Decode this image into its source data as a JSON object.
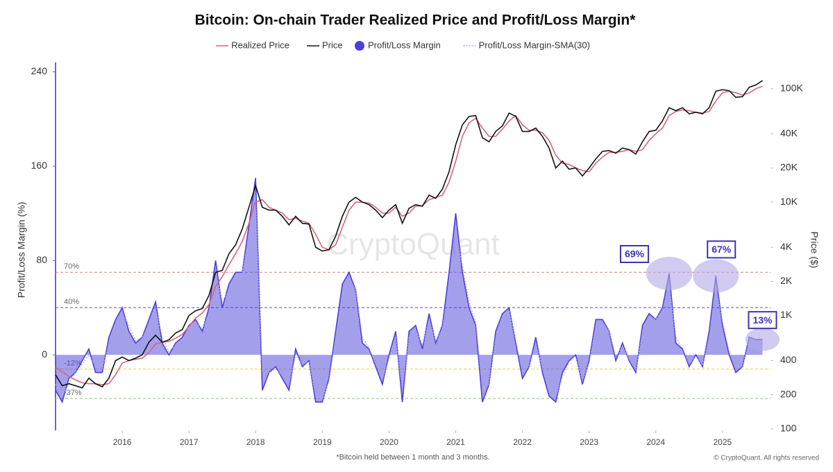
{
  "chart_data": {
    "type": "line",
    "title": "Bitcoin: On-chain Trader Realized Price and Profit/Loss Margin*",
    "footnote": "*Bitcoin held between 1 month and 3 months.",
    "copyright": "© CryptoQuant. All rights reserved",
    "watermark": "CryptoQuant",
    "y_label": "Profit/Loss Margin (%)",
    "y2_label": "Price ($)",
    "x": [
      2015.0,
      2015.1,
      2015.2,
      2015.3,
      2015.4,
      2015.5,
      2015.6,
      2015.7,
      2015.8,
      2015.9,
      2016.0,
      2016.1,
      2016.2,
      2016.3,
      2016.4,
      2016.5,
      2016.6,
      2016.7,
      2016.8,
      2016.9,
      2017.0,
      2017.1,
      2017.2,
      2017.3,
      2017.4,
      2017.5,
      2017.6,
      2017.7,
      2017.8,
      2017.9,
      2018.0,
      2018.1,
      2018.2,
      2018.3,
      2018.4,
      2018.5,
      2018.6,
      2018.7,
      2018.8,
      2018.9,
      2019.0,
      2019.1,
      2019.2,
      2019.3,
      2019.4,
      2019.5,
      2019.6,
      2019.7,
      2019.8,
      2019.9,
      2020.0,
      2020.1,
      2020.2,
      2020.3,
      2020.4,
      2020.5,
      2020.6,
      2020.7,
      2020.8,
      2020.9,
      2021.0,
      2021.1,
      2021.2,
      2021.3,
      2021.4,
      2021.5,
      2021.6,
      2021.7,
      2021.8,
      2021.9,
      2022.0,
      2022.1,
      2022.2,
      2022.3,
      2022.4,
      2022.5,
      2022.6,
      2022.7,
      2022.8,
      2022.9,
      2023.0,
      2023.1,
      2023.2,
      2023.3,
      2023.4,
      2023.5,
      2023.6,
      2023.7,
      2023.8,
      2023.9,
      2024.0,
      2024.1,
      2024.2,
      2024.3,
      2024.4,
      2024.5,
      2024.6,
      2024.7,
      2024.8,
      2024.9,
      2025.0,
      2025.1,
      2025.2,
      2025.3,
      2025.4,
      2025.5,
      2025.6
    ],
    "xlim": [
      2015.0,
      2025.72
    ],
    "xticks": [
      2016,
      2017,
      2018,
      2019,
      2020,
      2021,
      2022,
      2023,
      2024,
      2025
    ],
    "ylim": [
      -64,
      242
    ],
    "yticks": [
      0,
      80,
      160,
      240
    ],
    "y2lim": [
      97,
      148000
    ],
    "y2log": true,
    "y2ticks": [
      100,
      200,
      400,
      {
        "value": 1000,
        "label": "1K"
      },
      {
        "value": 2000,
        "label": "2K"
      },
      {
        "value": 4000,
        "label": "4K"
      },
      {
        "value": 10000,
        "label": "10K"
      },
      {
        "value": 20000,
        "label": "20K"
      },
      {
        "value": 40000,
        "label": "40K"
      },
      {
        "value": 100000,
        "label": "100K"
      }
    ],
    "series": [
      {
        "name": "Realized Price",
        "color": "#d9637a",
        "axis": "y2",
        "style": "line",
        "values": [
          350,
          320,
          290,
          270,
          255,
          250,
          250,
          245,
          250,
          300,
          380,
          400,
          410,
          420,
          470,
          560,
          580,
          590,
          630,
          680,
          800,
          950,
          1050,
          1250,
          1800,
          2200,
          2800,
          3500,
          4500,
          6500,
          10000,
          10500,
          9000,
          8500,
          8000,
          7000,
          7200,
          6800,
          6500,
          5200,
          4000,
          3800,
          4200,
          6000,
          8500,
          10000,
          10000,
          9800,
          9000,
          8000,
          8000,
          9000,
          7500,
          8000,
          9200,
          9300,
          10500,
          11000,
          11500,
          15000,
          23000,
          38000,
          50000,
          55000,
          45000,
          38000,
          38000,
          44000,
          52000,
          58000,
          48000,
          43000,
          43000,
          41000,
          35000,
          26000,
          22000,
          21500,
          20000,
          19000,
          18500,
          22000,
          25000,
          27500,
          27500,
          28000,
          29000,
          28000,
          29000,
          35000,
          40000,
          45000,
          58000,
          63000,
          65000,
          64000,
          62000,
          61000,
          63000,
          78000,
          92000,
          95000,
          92000,
          88000,
          92000,
          100000,
          105000
        ]
      },
      {
        "name": "Price",
        "color": "#111111",
        "axis": "y2",
        "style": "line",
        "values": [
          300,
          240,
          250,
          240,
          230,
          280,
          250,
          235,
          280,
          400,
          430,
          400,
          420,
          450,
          580,
          670,
          580,
          610,
          700,
          750,
          1000,
          1100,
          1150,
          1500,
          2400,
          2500,
          3500,
          4200,
          5800,
          9000,
          14000,
          9000,
          8500,
          8500,
          7500,
          6300,
          7500,
          6500,
          6400,
          4000,
          3700,
          3800,
          5000,
          7500,
          10000,
          11000,
          10000,
          9500,
          8500,
          7300,
          8500,
          9500,
          6500,
          8800,
          9500,
          9200,
          11500,
          10800,
          13000,
          18500,
          32000,
          48000,
          57000,
          58000,
          37000,
          34000,
          42000,
          47000,
          61000,
          57000,
          42000,
          42000,
          45000,
          38000,
          30000,
          20000,
          23000,
          19500,
          20000,
          17000,
          20000,
          24000,
          28000,
          28500,
          27000,
          30000,
          29000,
          26500,
          34000,
          42000,
          43000,
          52000,
          68000,
          64000,
          68000,
          60000,
          62000,
          60000,
          68000,
          95000,
          98000,
          96000,
          84000,
          85000,
          103000,
          108000,
          118000
        ]
      },
      {
        "name": "Profit/Loss Margin",
        "color": "#4a3fd8",
        "style": "area",
        "values": [
          -30,
          -40,
          -20,
          -15,
          -5,
          5,
          -15,
          -15,
          15,
          30,
          40,
          20,
          10,
          15,
          30,
          45,
          10,
          0,
          10,
          15,
          25,
          30,
          20,
          40,
          80,
          40,
          60,
          70,
          70,
          110,
          150,
          -30,
          -15,
          -10,
          -20,
          -30,
          5,
          -10,
          -5,
          -40,
          -40,
          -20,
          20,
          60,
          70,
          55,
          10,
          5,
          -10,
          -25,
          0,
          20,
          -40,
          20,
          25,
          5,
          35,
          10,
          25,
          70,
          120,
          70,
          40,
          25,
          -40,
          -25,
          20,
          35,
          40,
          10,
          -20,
          -10,
          15,
          -15,
          -35,
          -40,
          -15,
          -5,
          0,
          -25,
          -5,
          30,
          30,
          20,
          -5,
          10,
          -5,
          -15,
          25,
          35,
          30,
          40,
          69,
          10,
          5,
          -10,
          0,
          -10,
          20,
          67,
          25,
          0,
          -15,
          -10,
          15,
          13,
          13
        ]
      },
      {
        "name": "Profit/Loss Margin-SMA(30)",
        "color": "#a9a3e6",
        "style": "dotted",
        "values": [
          -25,
          -35,
          -25,
          -15,
          -8,
          0,
          -10,
          -12,
          10,
          25,
          35,
          25,
          12,
          15,
          25,
          40,
          15,
          3,
          8,
          13,
          22,
          28,
          22,
          35,
          70,
          45,
          55,
          65,
          70,
          100,
          135,
          -15,
          -15,
          -12,
          -18,
          -25,
          0,
          -8,
          -6,
          -35,
          -38,
          -22,
          15,
          50,
          65,
          55,
          15,
          6,
          -8,
          -22,
          -3,
          15,
          -30,
          15,
          22,
          8,
          30,
          12,
          22,
          60,
          105,
          75,
          45,
          28,
          -30,
          -25,
          15,
          32,
          38,
          12,
          -15,
          -10,
          10,
          -12,
          -30,
          -36,
          -18,
          -6,
          -2,
          -22,
          -7,
          25,
          28,
          20,
          -2,
          8,
          -4,
          -13,
          20,
          32,
          30,
          38,
          60,
          15,
          6,
          -8,
          -1,
          -9,
          15,
          58,
          28,
          3,
          -12,
          -10,
          12,
          12,
          12
        ]
      }
    ],
    "reference_lines": [
      {
        "value": 70,
        "label": "70%",
        "color": "#e08a8a"
      },
      {
        "value": 40,
        "label": "40%",
        "color": "#7a72d8"
      },
      {
        "value": -12,
        "label": "-12%",
        "color": "#e6d96a"
      },
      {
        "value": -37,
        "label": "-37%",
        "color": "#9fd48a"
      }
    ],
    "annotations": [
      {
        "x": 2024.2,
        "value": 69,
        "label": "69%"
      },
      {
        "x": 2024.9,
        "value": 67,
        "label": "67%"
      },
      {
        "x": 2025.6,
        "value": 13,
        "label": "13%"
      }
    ],
    "legend": "top",
    "grid": false
  }
}
